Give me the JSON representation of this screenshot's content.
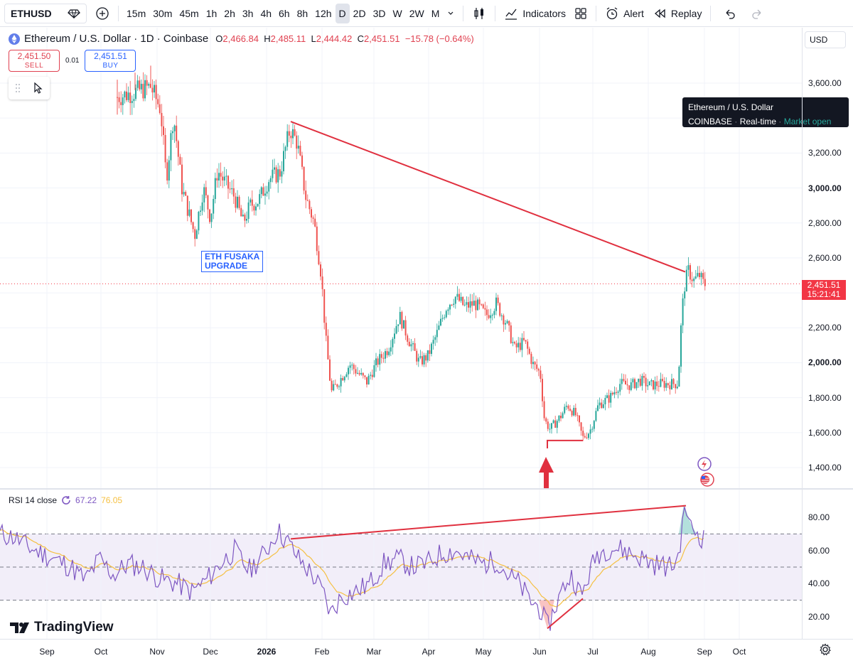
{
  "toolbar": {
    "symbol": "ETHUSD",
    "intervals": [
      "15m",
      "30m",
      "45m",
      "1h",
      "2h",
      "3h",
      "4h",
      "6h",
      "8h",
      "12h",
      "D",
      "2D",
      "3D",
      "W",
      "2W",
      "M"
    ],
    "active_interval": "D",
    "indicators_label": "Indicators",
    "alert_label": "Alert",
    "replay_label": "Replay"
  },
  "legend": {
    "title": "Ethereum / U.S. Dollar · 1D · Coinbase",
    "o_label": "O",
    "o": "2,466.84",
    "h_label": "H",
    "h": "2,485.11",
    "l_label": "L",
    "l": "2,444.42",
    "c_label": "C",
    "c": "2,451.51",
    "change": "−15.78 (−0.64%)"
  },
  "trade": {
    "sell_price": "2,451.50",
    "sell_label": "SELL",
    "spread": "0.01",
    "buy_price": "2,451.51",
    "buy_label": "BUY"
  },
  "currency": "USD",
  "tooltip": {
    "name": "Ethereum / U.S. Dollar",
    "exchange": "COINBASE",
    "feed": "Real-time",
    "status": "Market open"
  },
  "price_tag": {
    "price": "2,451.51",
    "countdown": "15:21:41"
  },
  "annotation": {
    "line1": "ETH FUSAKA",
    "line2": "UPGRADE"
  },
  "rsi_legend": {
    "label": "RSI 14 close",
    "rsi": "67.22",
    "ma": "76.05"
  },
  "brand": "TradingView",
  "price_axis": [
    "3,600.00",
    "3,200.00",
    "3,000.00",
    "2,800.00",
    "2,600.00",
    "2,200.00",
    "2,000.00",
    "1,800.00",
    "1,600.00",
    "1,400.00"
  ],
  "rsi_axis": [
    "80.00",
    "60.00",
    "40.00",
    "20.00"
  ],
  "time_axis": [
    "Sep",
    "Oct",
    "Nov",
    "Dec",
    "2026",
    "Feb",
    "Mar",
    "Apr",
    "May",
    "Jun",
    "Jul",
    "Aug",
    "Sep",
    "Oct"
  ],
  "colors": {
    "up": "#26a69a",
    "down": "#ef5350",
    "drawing": "#e0303f",
    "rsi": "#7e57c2",
    "rsi_ma": "#f5c042",
    "accent": "#2962ff"
  },
  "chart_data": {
    "type": "candlestick",
    "symbol": "ETHUSD",
    "timeframe": "1D",
    "approx_closes": [
      {
        "date": "Nov",
        "close": 3600
      },
      {
        "date": "Nov",
        "close": 3100
      },
      {
        "date": "Dec",
        "close": 2800
      },
      {
        "date": "Dec",
        "close": 3050
      },
      {
        "date": "2026",
        "close": 2900
      },
      {
        "date": "2026",
        "close": 3350
      },
      {
        "date": "Feb",
        "close": 2200
      },
      {
        "date": "Feb",
        "close": 1800
      },
      {
        "date": "Mar",
        "close": 1950
      },
      {
        "date": "Mar",
        "close": 2050
      },
      {
        "date": "Apr",
        "close": 2050
      },
      {
        "date": "Apr",
        "close": 2350
      },
      {
        "date": "May",
        "close": 2300
      },
      {
        "date": "May",
        "close": 2100
      },
      {
        "date": "Jun",
        "close": 1650
      },
      {
        "date": "Jun",
        "close": 1600
      },
      {
        "date": "Jul",
        "close": 1750
      },
      {
        "date": "Jul",
        "close": 1950
      },
      {
        "date": "Aug",
        "close": 1880
      },
      {
        "date": "Aug",
        "close": 2500
      },
      {
        "date": "Sep",
        "close": 2451.51
      }
    ],
    "trendlines": [
      {
        "pane": "price",
        "from": {
          "date": "2026",
          "value": 3380
        },
        "to": {
          "date": "Aug",
          "value": 2520
        }
      },
      {
        "pane": "price",
        "from": {
          "date": "Jun",
          "value": 1555
        },
        "to": {
          "date": "Jun",
          "value": 1555
        }
      },
      {
        "pane": "rsi",
        "from": {
          "date": "2026",
          "value": 67
        },
        "to": {
          "date": "Aug",
          "value": 87
        }
      },
      {
        "pane": "rsi",
        "from": {
          "date": "Jun",
          "value": 13
        },
        "to": {
          "date": "Jun",
          "value": 31
        }
      }
    ],
    "rsi_levels": [
      70,
      50,
      30
    ],
    "current_rsi": 67.22,
    "rsi_ma": 76.05
  }
}
